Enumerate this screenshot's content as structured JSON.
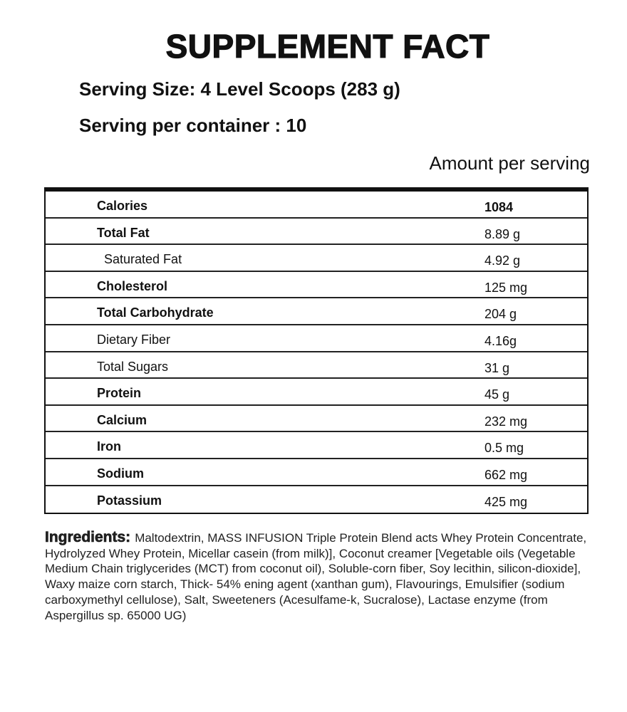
{
  "title": "SUPPLEMENT FACT",
  "serving_size": "Serving Size: 4 Level Scoops (283 g)",
  "servings_per_container": "Serving per container : 10",
  "amount_header": "Amount per serving",
  "rows": [
    {
      "label": "Calories",
      "value": "1084",
      "bold": true
    },
    {
      "label": "Total Fat",
      "value": "8.89 g",
      "bold": true
    },
    {
      "label": "Saturated Fat",
      "value": "4.92 g",
      "bold": false
    },
    {
      "label": "Cholesterol",
      "value": "125 mg",
      "bold": true
    },
    {
      "label": "Total Carbohydrate",
      "value": "204 g",
      "bold": true
    },
    {
      "label": "Dietary Fiber",
      "value": "4.16g",
      "bold": false
    },
    {
      "label": "Total Sugars",
      "value": "31 g",
      "bold": false
    },
    {
      "label": "Protein",
      "value": "45 g",
      "bold": true
    },
    {
      "label": "Calcium",
      "value": "232 mg",
      "bold": true
    },
    {
      "label": "Iron",
      "value": "0.5 mg",
      "bold": true
    },
    {
      "label": "Sodium",
      "value": "662 mg",
      "bold": true
    },
    {
      "label": "Potassium",
      "value": "425 mg",
      "bold": true
    }
  ],
  "ingredients": {
    "heading": "Ingredients:",
    "text": "Maltodextrin, MASS INFUSION Triple Protein Blend acts Whey Protein Concentrate, Hydrolyzed Whey Protein, Micellar casein (from milk)], Coconut creamer [Vegetable oils (Vegetable Medium Chain triglycerides (MCT) from coconut oil), Soluble-corn fiber, Soy lecithin, silicon-dioxide], Waxy maize corn starch, Thick- 54% ening agent (xanthan gum), Flavourings, Emulsifier (sodium carboxymethyl cellulose), Salt, Sweeteners (Acesulfame-k, Sucralose), Lactase enzyme (from Aspergillus sp. 65000 UG)"
  }
}
